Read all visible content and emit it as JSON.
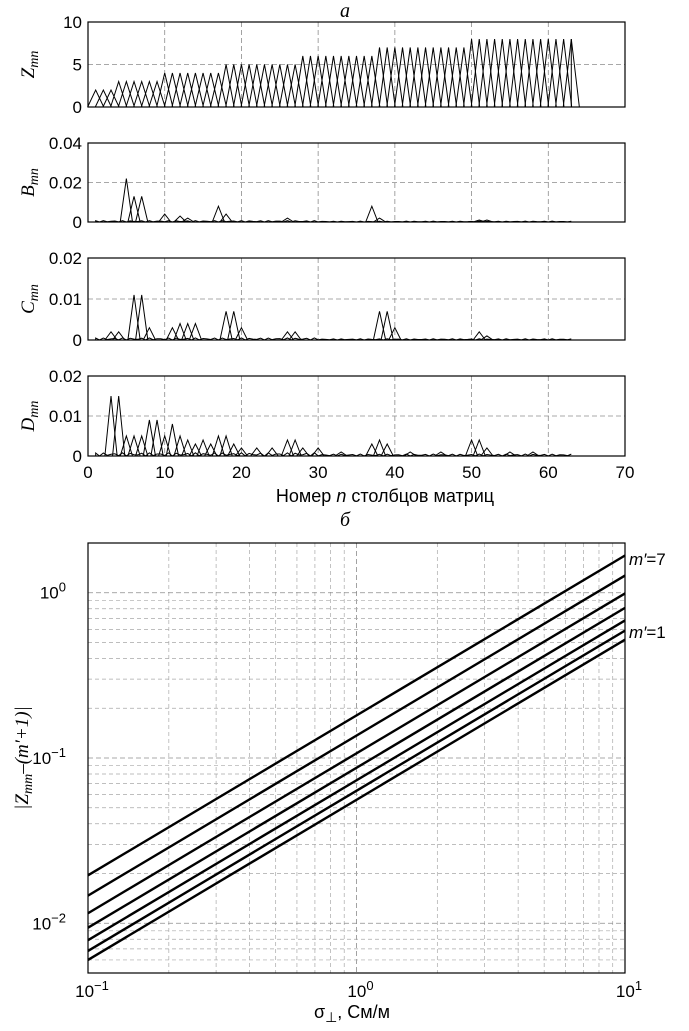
{
  "chart_data": [
    {
      "type": "line",
      "panel_title": "а",
      "ylabel": "Zmn",
      "ylabel_base": "Z",
      "ylabel_sub": "mn",
      "xlim": [
        0,
        70
      ],
      "ylim": [
        0,
        10
      ],
      "xticks": [
        0,
        10,
        20,
        30,
        40,
        50,
        60,
        70
      ],
      "yticks": [
        "0",
        "5",
        "10"
      ],
      "ytick_values": [
        0,
        5,
        10
      ],
      "grid": true,
      "n_max": 63,
      "series": [
        {
          "values": [
            2,
            2,
            2,
            3,
            3,
            3,
            3,
            3,
            3,
            4,
            4,
            4,
            4,
            4,
            4,
            4,
            4,
            5,
            5,
            5,
            5,
            5,
            5,
            5,
            5,
            5,
            5,
            6,
            6,
            6,
            6,
            6,
            6,
            6,
            6,
            6,
            6,
            7,
            7,
            7,
            7,
            7,
            7,
            7,
            7,
            7,
            7,
            7,
            7,
            8,
            8,
            8,
            8,
            8,
            8,
            8,
            8,
            8,
            8,
            8,
            8,
            8,
            8
          ]
        }
      ]
    },
    {
      "type": "line",
      "ylabel": "Bmn",
      "ylabel_base": "B",
      "ylabel_sub": "mn",
      "xlim": [
        0,
        70
      ],
      "ylim": [
        0,
        0.04
      ],
      "xticks": [
        0,
        10,
        20,
        30,
        40,
        50,
        60,
        70
      ],
      "yticks": [
        "0",
        "0.02",
        "0.04"
      ],
      "ytick_values": [
        0,
        0.02,
        0.04
      ],
      "grid": true,
      "n_max": 63,
      "series": [
        {
          "peaks": [
            [
              5,
              0.022
            ],
            [
              6,
              0.013
            ],
            [
              7,
              0.013
            ],
            [
              10,
              0.004
            ],
            [
              12,
              0.003
            ],
            [
              13,
              0.002
            ],
            [
              17,
              0.008
            ],
            [
              18,
              0.004
            ],
            [
              26,
              0.002
            ],
            [
              37,
              0.008
            ],
            [
              38,
              0.002
            ],
            [
              51,
              0.001
            ],
            [
              52,
              0.001
            ]
          ],
          "noise": 0.0007
        }
      ]
    },
    {
      "type": "line",
      "ylabel": "Cmn",
      "ylabel_base": "C",
      "ylabel_sub": "mn",
      "xlim": [
        0,
        70
      ],
      "ylim": [
        0,
        0.02
      ],
      "xticks": [
        0,
        10,
        20,
        30,
        40,
        50,
        60,
        70
      ],
      "yticks": [
        "0",
        "0.01",
        "0.02"
      ],
      "ytick_values": [
        0,
        0.01,
        0.02
      ],
      "grid": true,
      "n_max": 63,
      "series": [
        {
          "peaks": [
            [
              3,
              0.002
            ],
            [
              4,
              0.002
            ],
            [
              6,
              0.011
            ],
            [
              7,
              0.011
            ],
            [
              8,
              0.003
            ],
            [
              11,
              0.003
            ],
            [
              12,
              0.004
            ],
            [
              13,
              0.004
            ],
            [
              14,
              0.004
            ],
            [
              18,
              0.007
            ],
            [
              19,
              0.007
            ],
            [
              20,
              0.003
            ],
            [
              26,
              0.002
            ],
            [
              27,
              0.002
            ],
            [
              38,
              0.007
            ],
            [
              39,
              0.007
            ],
            [
              40,
              0.003
            ],
            [
              51,
              0.002
            ],
            [
              52,
              0.001
            ]
          ],
          "noise": 0.0005
        }
      ]
    },
    {
      "type": "line",
      "ylabel": "Dmn",
      "ylabel_base": "D",
      "ylabel_sub": "mn",
      "xlabel": "Номер n столбцов матриц",
      "xlabel_before": "Номер ",
      "xlabel_var": "n",
      "xlabel_after": " столбцов матриц",
      "xlim": [
        0,
        70
      ],
      "ylim": [
        0,
        0.02
      ],
      "xticks": [
        0,
        10,
        20,
        30,
        40,
        50,
        60,
        70
      ],
      "yticks": [
        "0",
        "0.01",
        "0.02"
      ],
      "ytick_values": [
        0,
        0.01,
        0.02
      ],
      "grid": true,
      "n_max": 63,
      "series": [
        {
          "peaks": [
            [
              3,
              0.015
            ],
            [
              4,
              0.015
            ],
            [
              5,
              0.005
            ],
            [
              6,
              0.005
            ],
            [
              7,
              0.005
            ],
            [
              8,
              0.009
            ],
            [
              9,
              0.009
            ],
            [
              10,
              0.005
            ],
            [
              11,
              0.008
            ],
            [
              12,
              0.005
            ],
            [
              13,
              0.004
            ],
            [
              14,
              0.003
            ],
            [
              15,
              0.004
            ],
            [
              16,
              0.003
            ],
            [
              17,
              0.005
            ],
            [
              18,
              0.005
            ],
            [
              19,
              0.003
            ],
            [
              20,
              0.002
            ],
            [
              22,
              0.002
            ],
            [
              24,
              0.002
            ],
            [
              26,
              0.004
            ],
            [
              27,
              0.004
            ],
            [
              28,
              0.002
            ],
            [
              30,
              0.002
            ],
            [
              33,
              0.001
            ],
            [
              37,
              0.003
            ],
            [
              38,
              0.004
            ],
            [
              39,
              0.003
            ],
            [
              42,
              0.001
            ],
            [
              46,
              0.001
            ],
            [
              50,
              0.004
            ],
            [
              51,
              0.004
            ],
            [
              52,
              0.002
            ],
            [
              55,
              0.001
            ],
            [
              58,
              0.001
            ]
          ],
          "noise": 0.0008
        }
      ]
    },
    {
      "type": "line",
      "panel_title": "б",
      "xscale": "log",
      "yscale": "log",
      "xlim": [
        0.1,
        10
      ],
      "ylim": [
        0.005,
        2
      ],
      "xlabel": "σ⊥, См/м",
      "xlabel_sym": "σ",
      "xlabel_sub": "⊥",
      "xlabel_rest": ", См/м",
      "ylabel": "|Zmm–(m′+1)|",
      "ylabel_parts": [
        "|Z",
        "mm",
        "–(",
        "m′",
        "+1)|"
      ],
      "xtick_labels": [
        {
          "base": "10",
          "exp": "−1",
          "value": 0.1
        },
        {
          "base": "10",
          "exp": "0",
          "value": 1
        },
        {
          "base": "10",
          "exp": "1",
          "value": 10
        }
      ],
      "ytick_labels": [
        {
          "base": "10",
          "exp": "−2",
          "value": 0.01
        },
        {
          "base": "10",
          "exp": "−1",
          "value": 0.1
        },
        {
          "base": "10",
          "exp": "0",
          "value": 1
        }
      ],
      "grid": true,
      "annotations": [
        {
          "text_var": "m′",
          "text_rest": "=7",
          "y": 1.6
        },
        {
          "text_var": "m′",
          "text_rest": "=1",
          "y": 0.58
        }
      ],
      "series": [
        {
          "x": [
            0.1,
            10
          ],
          "y": [
            0.006,
            0.52
          ]
        },
        {
          "x": [
            0.1,
            10
          ],
          "y": [
            0.0068,
            0.59
          ]
        },
        {
          "x": [
            0.1,
            10
          ],
          "y": [
            0.0079,
            0.68
          ]
        },
        {
          "x": [
            0.1,
            10
          ],
          "y": [
            0.0094,
            0.81
          ]
        },
        {
          "x": [
            0.1,
            10
          ],
          "y": [
            0.0115,
            0.99
          ]
        },
        {
          "x": [
            0.1,
            10
          ],
          "y": [
            0.0147,
            1.27
          ]
        },
        {
          "x": [
            0.1,
            10
          ],
          "y": [
            0.0195,
            1.68
          ]
        }
      ]
    }
  ]
}
